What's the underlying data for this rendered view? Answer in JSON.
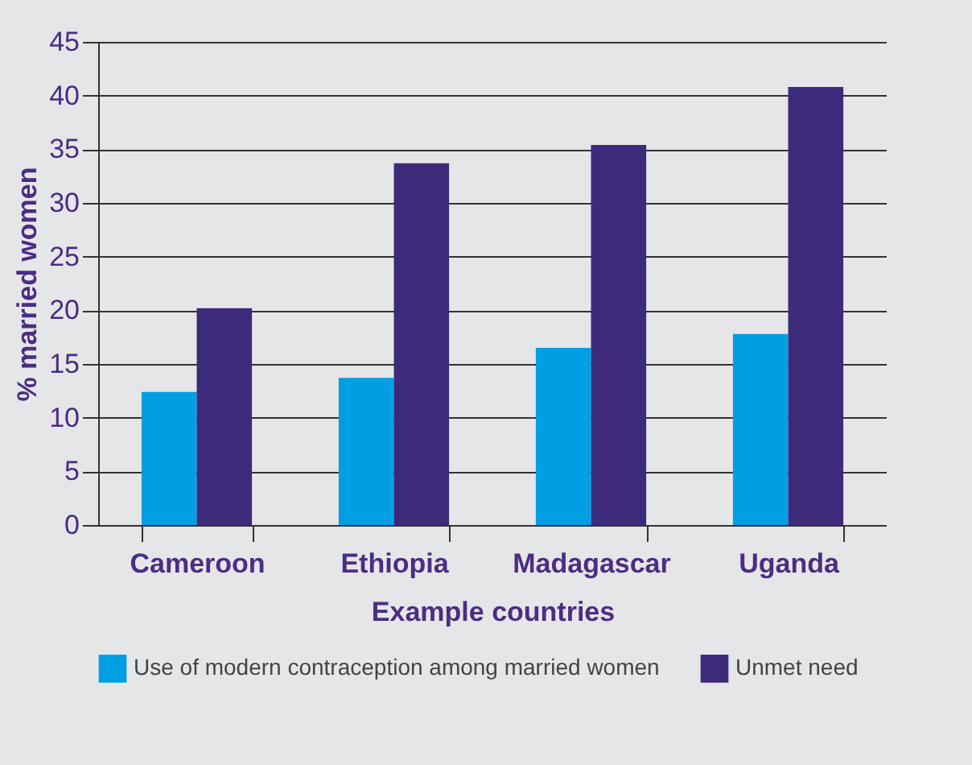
{
  "chart_data": {
    "type": "bar",
    "xlabel": "Example countries",
    "ylabel": "% married women",
    "categories": [
      "Cameroon",
      "Ethiopia",
      "Madagascar",
      "Uganda"
    ],
    "series": [
      {
        "name": "Use of modern contraception among married women",
        "color": "#009fe3",
        "values": [
          12.4,
          13.7,
          16.5,
          17.8
        ]
      },
      {
        "name": "Unmet need",
        "color": "#3d2a7a",
        "values": [
          20.2,
          33.7,
          35.4,
          40.8
        ]
      }
    ],
    "ylim": [
      0,
      45
    ],
    "yticks": [
      0,
      5,
      10,
      15,
      20,
      25,
      30,
      35,
      40,
      45
    ],
    "grid": "y",
    "legend": "bottom"
  }
}
